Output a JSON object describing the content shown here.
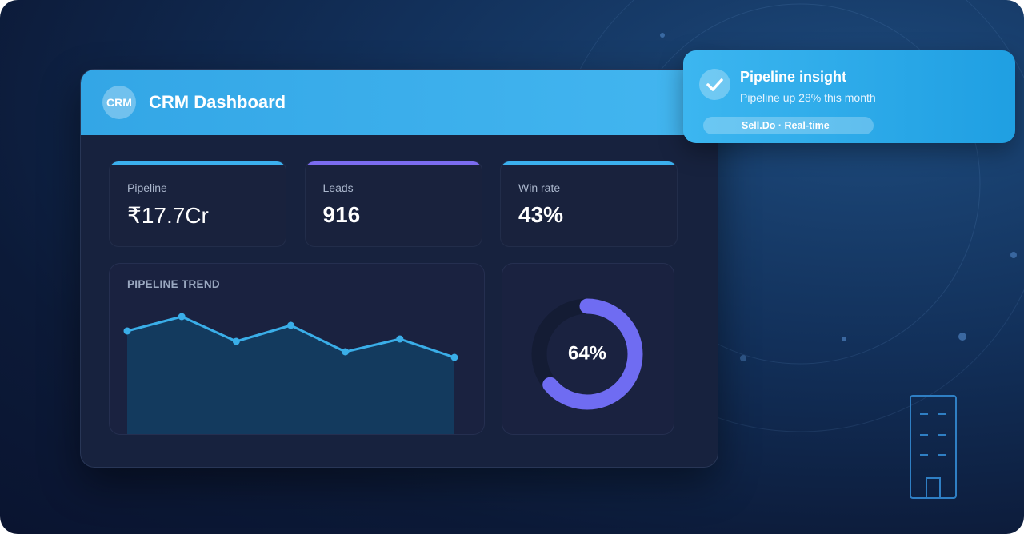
{
  "header": {
    "logo": "CRM",
    "title": "CRM Dashboard"
  },
  "kpis": [
    {
      "label": "Pipeline",
      "value": "₹17.7Cr",
      "color": "#3bb0ee"
    },
    {
      "label": "Leads",
      "value": "916",
      "color": "#7b6cf0"
    },
    {
      "label": "Win rate",
      "value": "43%",
      "color": "#3bb0ee"
    }
  ],
  "trend": {
    "type": "line",
    "title": "PIPELINE TREND",
    "values": [
      64,
      73,
      57.5,
      67.5,
      51,
      59,
      47.5
    ],
    "ylim": [
      0,
      100
    ],
    "color": "#3aaee8"
  },
  "donut": {
    "type": "donut",
    "value": 64,
    "value_label": "64%",
    "range": [
      0,
      100
    ],
    "color": "#6f6cf2"
  },
  "notification": {
    "title": "Pipeline insight",
    "message": "Pipeline up 28% this month",
    "tag": "Sell.Do · Real-time"
  }
}
